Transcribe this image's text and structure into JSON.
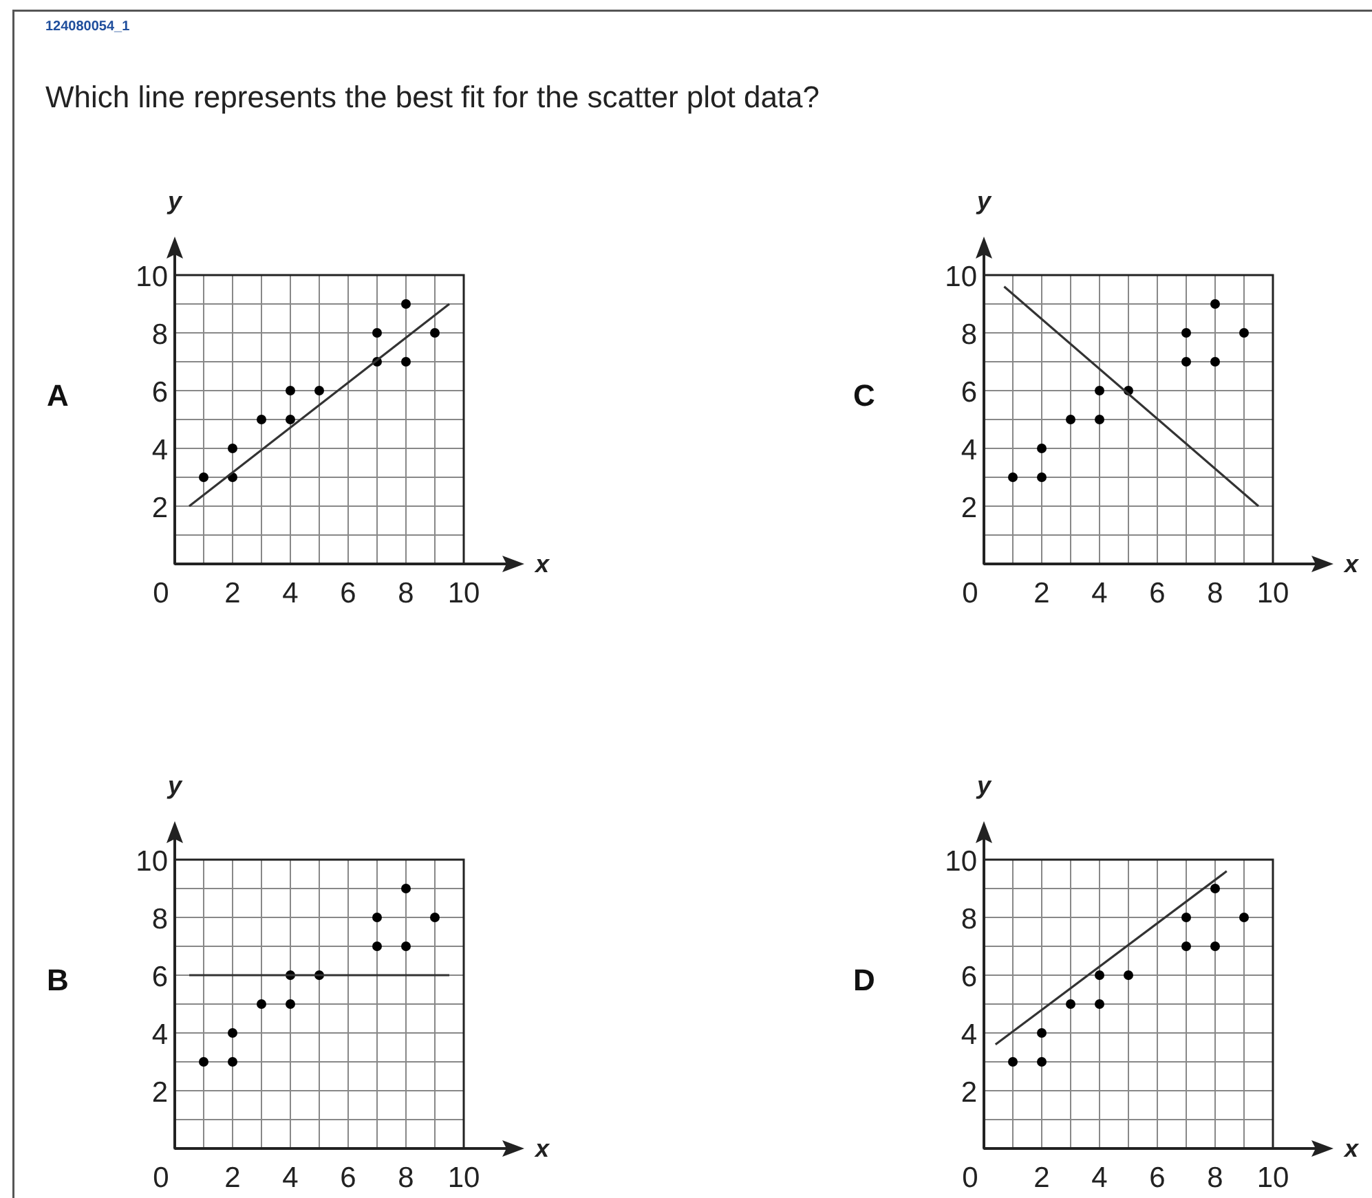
{
  "chart_data": [
    {
      "type": "scatter",
      "title": "Which line represents the best fit for the scatter plot data?",
      "annotations": [
        "124080054_1",
        "A"
      ],
      "xlabel": "x",
      "ylabel": "y",
      "xlim": [
        0,
        10
      ],
      "ylim": [
        0,
        10
      ],
      "xticks": [
        0,
        {
          "value": 1,
          "label": null
        },
        2,
        {
          "value": 3,
          "label": null
        },
        4,
        {
          "value": 5,
          "label": null
        },
        6,
        {
          "value": 7,
          "label": null
        },
        8,
        {
          "value": 9,
          "label": null
        },
        10
      ],
      "yticks": [
        {
          "value": 1,
          "label": null
        },
        2,
        {
          "value": 3,
          "label": null
        },
        4,
        {
          "value": 5,
          "label": null
        },
        6,
        {
          "value": 7,
          "label": null
        },
        8,
        {
          "value": 9,
          "label": null
        },
        10
      ],
      "grid": true,
      "series": [
        {
          "marker": "circle",
          "color": "#000000",
          "x": [
            1,
            2,
            2,
            3,
            4,
            4,
            5,
            7,
            7,
            8,
            8,
            9
          ],
          "values": [
            3,
            3,
            4,
            5,
            5,
            6,
            6,
            7,
            8,
            7,
            9,
            8
          ]
        },
        {
          "type": "line",
          "color": "#333333",
          "x": [
            0.5,
            9.5
          ],
          "values": [
            2,
            9
          ]
        }
      ]
    },
    {
      "type": "scatter",
      "annotations": [
        "C"
      ],
      "xlabel": "x",
      "ylabel": "y",
      "xlim": [
        0,
        10
      ],
      "ylim": [
        0,
        10
      ],
      "xticks": [
        0,
        {
          "value": 1,
          "label": null
        },
        2,
        {
          "value": 3,
          "label": null
        },
        4,
        {
          "value": 5,
          "label": null
        },
        6,
        {
          "value": 7,
          "label": null
        },
        8,
        {
          "value": 9,
          "label": null
        },
        10
      ],
      "yticks": [
        {
          "value": 1,
          "label": null
        },
        2,
        {
          "value": 3,
          "label": null
        },
        4,
        {
          "value": 5,
          "label": null
        },
        6,
        {
          "value": 7,
          "label": null
        },
        8,
        {
          "value": 9,
          "label": null
        },
        10
      ],
      "grid": true,
      "series": [
        {
          "marker": "circle",
          "color": "#000000",
          "x": [
            1,
            2,
            2,
            3,
            4,
            4,
            5,
            7,
            7,
            8,
            8,
            9
          ],
          "values": [
            3,
            3,
            4,
            5,
            5,
            6,
            6,
            7,
            8,
            7,
            9,
            8
          ]
        },
        {
          "type": "line",
          "color": "#333333",
          "x": [
            0.7,
            9.5
          ],
          "values": [
            9.6,
            2
          ]
        }
      ]
    },
    {
      "type": "scatter",
      "annotations": [
        "B"
      ],
      "xlabel": "x",
      "ylabel": "y",
      "xlim": [
        0,
        10
      ],
      "ylim": [
        0,
        10
      ],
      "xticks": [
        0,
        {
          "value": 1,
          "label": null
        },
        2,
        {
          "value": 3,
          "label": null
        },
        4,
        {
          "value": 5,
          "label": null
        },
        6,
        {
          "value": 7,
          "label": null
        },
        8,
        {
          "value": 9,
          "label": null
        },
        10
      ],
      "yticks": [
        {
          "value": 1,
          "label": null
        },
        2,
        {
          "value": 3,
          "label": null
        },
        4,
        {
          "value": 5,
          "label": null
        },
        6,
        {
          "value": 7,
          "label": null
        },
        8,
        {
          "value": 9,
          "label": null
        },
        10
      ],
      "grid": true,
      "series": [
        {
          "marker": "circle",
          "color": "#000000",
          "x": [
            1,
            2,
            2,
            3,
            4,
            4,
            5,
            7,
            7,
            8,
            8,
            9
          ],
          "values": [
            3,
            3,
            4,
            5,
            5,
            6,
            6,
            7,
            8,
            7,
            9,
            8
          ]
        },
        {
          "type": "line",
          "color": "#333333",
          "x": [
            0.5,
            9.5
          ],
          "values": [
            6,
            6
          ]
        }
      ]
    },
    {
      "type": "scatter",
      "annotations": [
        "D"
      ],
      "xlabel": "x",
      "ylabel": "y",
      "xlim": [
        0,
        10
      ],
      "ylim": [
        0,
        10
      ],
      "xticks": [
        0,
        {
          "value": 1,
          "label": null
        },
        2,
        {
          "value": 3,
          "label": null
        },
        4,
        {
          "value": 5,
          "label": null
        },
        6,
        {
          "value": 7,
          "label": null
        },
        8,
        {
          "value": 9,
          "label": null
        },
        10
      ],
      "yticks": [
        {
          "value": 1,
          "label": null
        },
        2,
        {
          "value": 3,
          "label": null
        },
        4,
        {
          "value": 5,
          "label": null
        },
        6,
        {
          "value": 7,
          "label": null
        },
        8,
        {
          "value": 9,
          "label": null
        },
        10
      ],
      "grid": true,
      "series": [
        {
          "marker": "circle",
          "color": "#000000",
          "x": [
            1,
            2,
            2,
            3,
            4,
            4,
            5,
            7,
            7,
            8,
            8,
            9
          ],
          "values": [
            3,
            3,
            4,
            5,
            5,
            6,
            6,
            7,
            8,
            7,
            9,
            8
          ]
        },
        {
          "type": "line",
          "color": "#333333",
          "x": [
            0.4,
            8.4
          ],
          "values": [
            3.6,
            9.6
          ]
        }
      ]
    }
  ]
}
